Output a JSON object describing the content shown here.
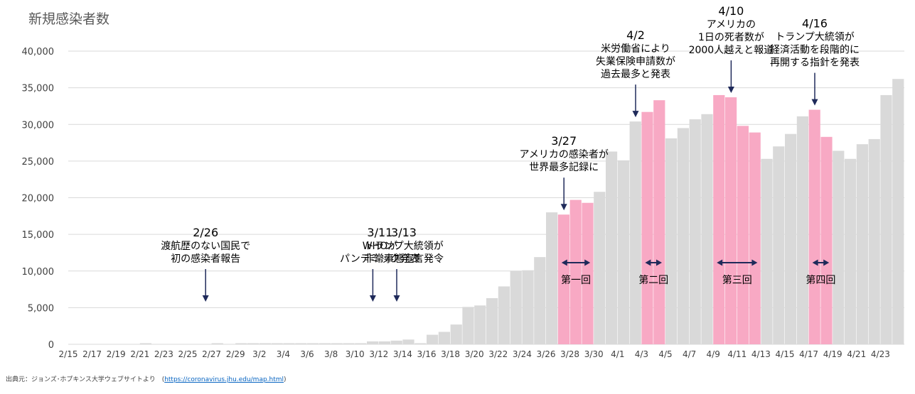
{
  "title": "新規感染者数",
  "source": {
    "prefix": "出典元：ジョンズ･ホプキンス大学ウェブサイトより　(",
    "link": "https://coronavirus.jhu.edu/map.html",
    "suffix": ")"
  },
  "colors": {
    "bar": "#D9D9D9",
    "highlight": "#F8A9C4",
    "grid": "#D9D9D9",
    "axis_text": "#404040",
    "arrow": "#1F2A5A",
    "annotation": "#000000"
  },
  "chart_data": {
    "type": "bar",
    "title": "新規感染者数",
    "xlabel": "",
    "ylabel": "",
    "ylim": [
      0,
      40000
    ],
    "yticks": [
      "0",
      "5,000",
      "10,000",
      "15,000",
      "20,000",
      "25,000",
      "30,000",
      "35,000",
      "40,000"
    ],
    "ytick_values": [
      0,
      5000,
      10000,
      15000,
      20000,
      25000,
      30000,
      35000,
      40000
    ],
    "grid": true,
    "categories": [
      "2/15",
      "2/16",
      "2/17",
      "2/18",
      "2/19",
      "2/20",
      "2/21",
      "2/22",
      "2/23",
      "2/24",
      "2/25",
      "2/26",
      "2/27",
      "2/28",
      "2/29",
      "3/1",
      "3/2",
      "3/3",
      "3/4",
      "3/5",
      "3/6",
      "3/7",
      "3/8",
      "3/9",
      "3/10",
      "3/11",
      "3/12",
      "3/13",
      "3/14",
      "3/15",
      "3/16",
      "3/17",
      "3/18",
      "3/19",
      "3/20",
      "3/21",
      "3/22",
      "3/23",
      "3/24",
      "3/25",
      "3/26",
      "3/27",
      "3/28",
      "3/29",
      "3/30",
      "3/31",
      "4/1",
      "4/2",
      "4/3",
      "4/4",
      "4/5",
      "4/6",
      "4/7",
      "4/8",
      "4/9",
      "4/10",
      "4/11",
      "4/12",
      "4/13",
      "4/14",
      "4/15",
      "4/16",
      "4/17",
      "4/18",
      "4/19",
      "4/20",
      "4/21",
      "4/22",
      "4/23",
      "4/24"
    ],
    "tick_labels": [
      "2/15",
      "",
      "2/17",
      "",
      "2/19",
      "",
      "2/21",
      "",
      "2/23",
      "",
      "2/25",
      "",
      "2/27",
      "",
      "2/29",
      "",
      "3/2",
      "",
      "3/4",
      "",
      "3/6",
      "",
      "3/8",
      "",
      "3/10",
      "",
      "3/12",
      "",
      "3/14",
      "",
      "3/16",
      "",
      "3/18",
      "",
      "3/20",
      "",
      "3/22",
      "",
      "3/24",
      "",
      "3/26",
      "",
      "3/28",
      "",
      "3/30",
      "",
      "4/1",
      "",
      "4/3",
      "",
      "4/5",
      "",
      "4/7",
      "",
      "4/9",
      "",
      "4/11",
      "",
      "4/13",
      "",
      "4/15",
      "",
      "4/17",
      "",
      "4/19",
      "",
      "4/21",
      "",
      "4/23",
      ""
    ],
    "values": [
      0,
      0,
      0,
      0,
      0,
      0,
      150,
      0,
      0,
      0,
      0,
      0,
      150,
      0,
      150,
      150,
      150,
      150,
      150,
      150,
      150,
      150,
      150,
      150,
      150,
      400,
      400,
      500,
      650,
      150,
      1300,
      1700,
      2700,
      5100,
      5300,
      6300,
      7900,
      10000,
      10100,
      11900,
      18000,
      17700,
      19700,
      19300,
      20800,
      26300,
      25100,
      30400,
      31700,
      33300,
      28100,
      29500,
      30700,
      31400,
      34000,
      33700,
      29800,
      28900,
      25300,
      27000,
      28700,
      31100,
      32000,
      28300,
      26400,
      25300,
      27300,
      28000,
      34000,
      36200
    ],
    "highlighted_indices": [
      41,
      42,
      43,
      48,
      49,
      54,
      55,
      56,
      57,
      62,
      63
    ],
    "meetings": [
      {
        "label": "第一回",
        "from": 41,
        "to": 43
      },
      {
        "label": "第二回",
        "from": 48,
        "to": 49
      },
      {
        "label": "第三回",
        "from": 54,
        "to": 57
      },
      {
        "label": "第四回",
        "from": 62,
        "to": 63
      }
    ],
    "annotations": [
      {
        "index": 11,
        "lines": [
          "2/26",
          "渡航歴のない国民で",
          "初の感染者報告"
        ]
      },
      {
        "index": 25,
        "lines": [
          "3/11",
          "WHOが",
          "パンデミック発表"
        ]
      },
      {
        "index": 27,
        "lines": [
          "3/13",
          "トランプ大統領が",
          "非常事態宣言発令"
        ]
      },
      {
        "index": 41,
        "lines": [
          "3/27",
          "アメリカの感染者が",
          "世界最多記録に"
        ]
      },
      {
        "index": 47,
        "lines": [
          "4/2",
          "米労働省により",
          "失業保険申請数が",
          "過去最多と発表"
        ]
      },
      {
        "index": 55,
        "lines": [
          "4/10",
          "アメリカの",
          "1日の死者数が",
          "2000人越えと報道"
        ]
      },
      {
        "index": 62,
        "lines": [
          "4/16",
          "トランプ大統領が",
          "経済活動を段階的に",
          "再開する指針を発表"
        ]
      }
    ]
  }
}
